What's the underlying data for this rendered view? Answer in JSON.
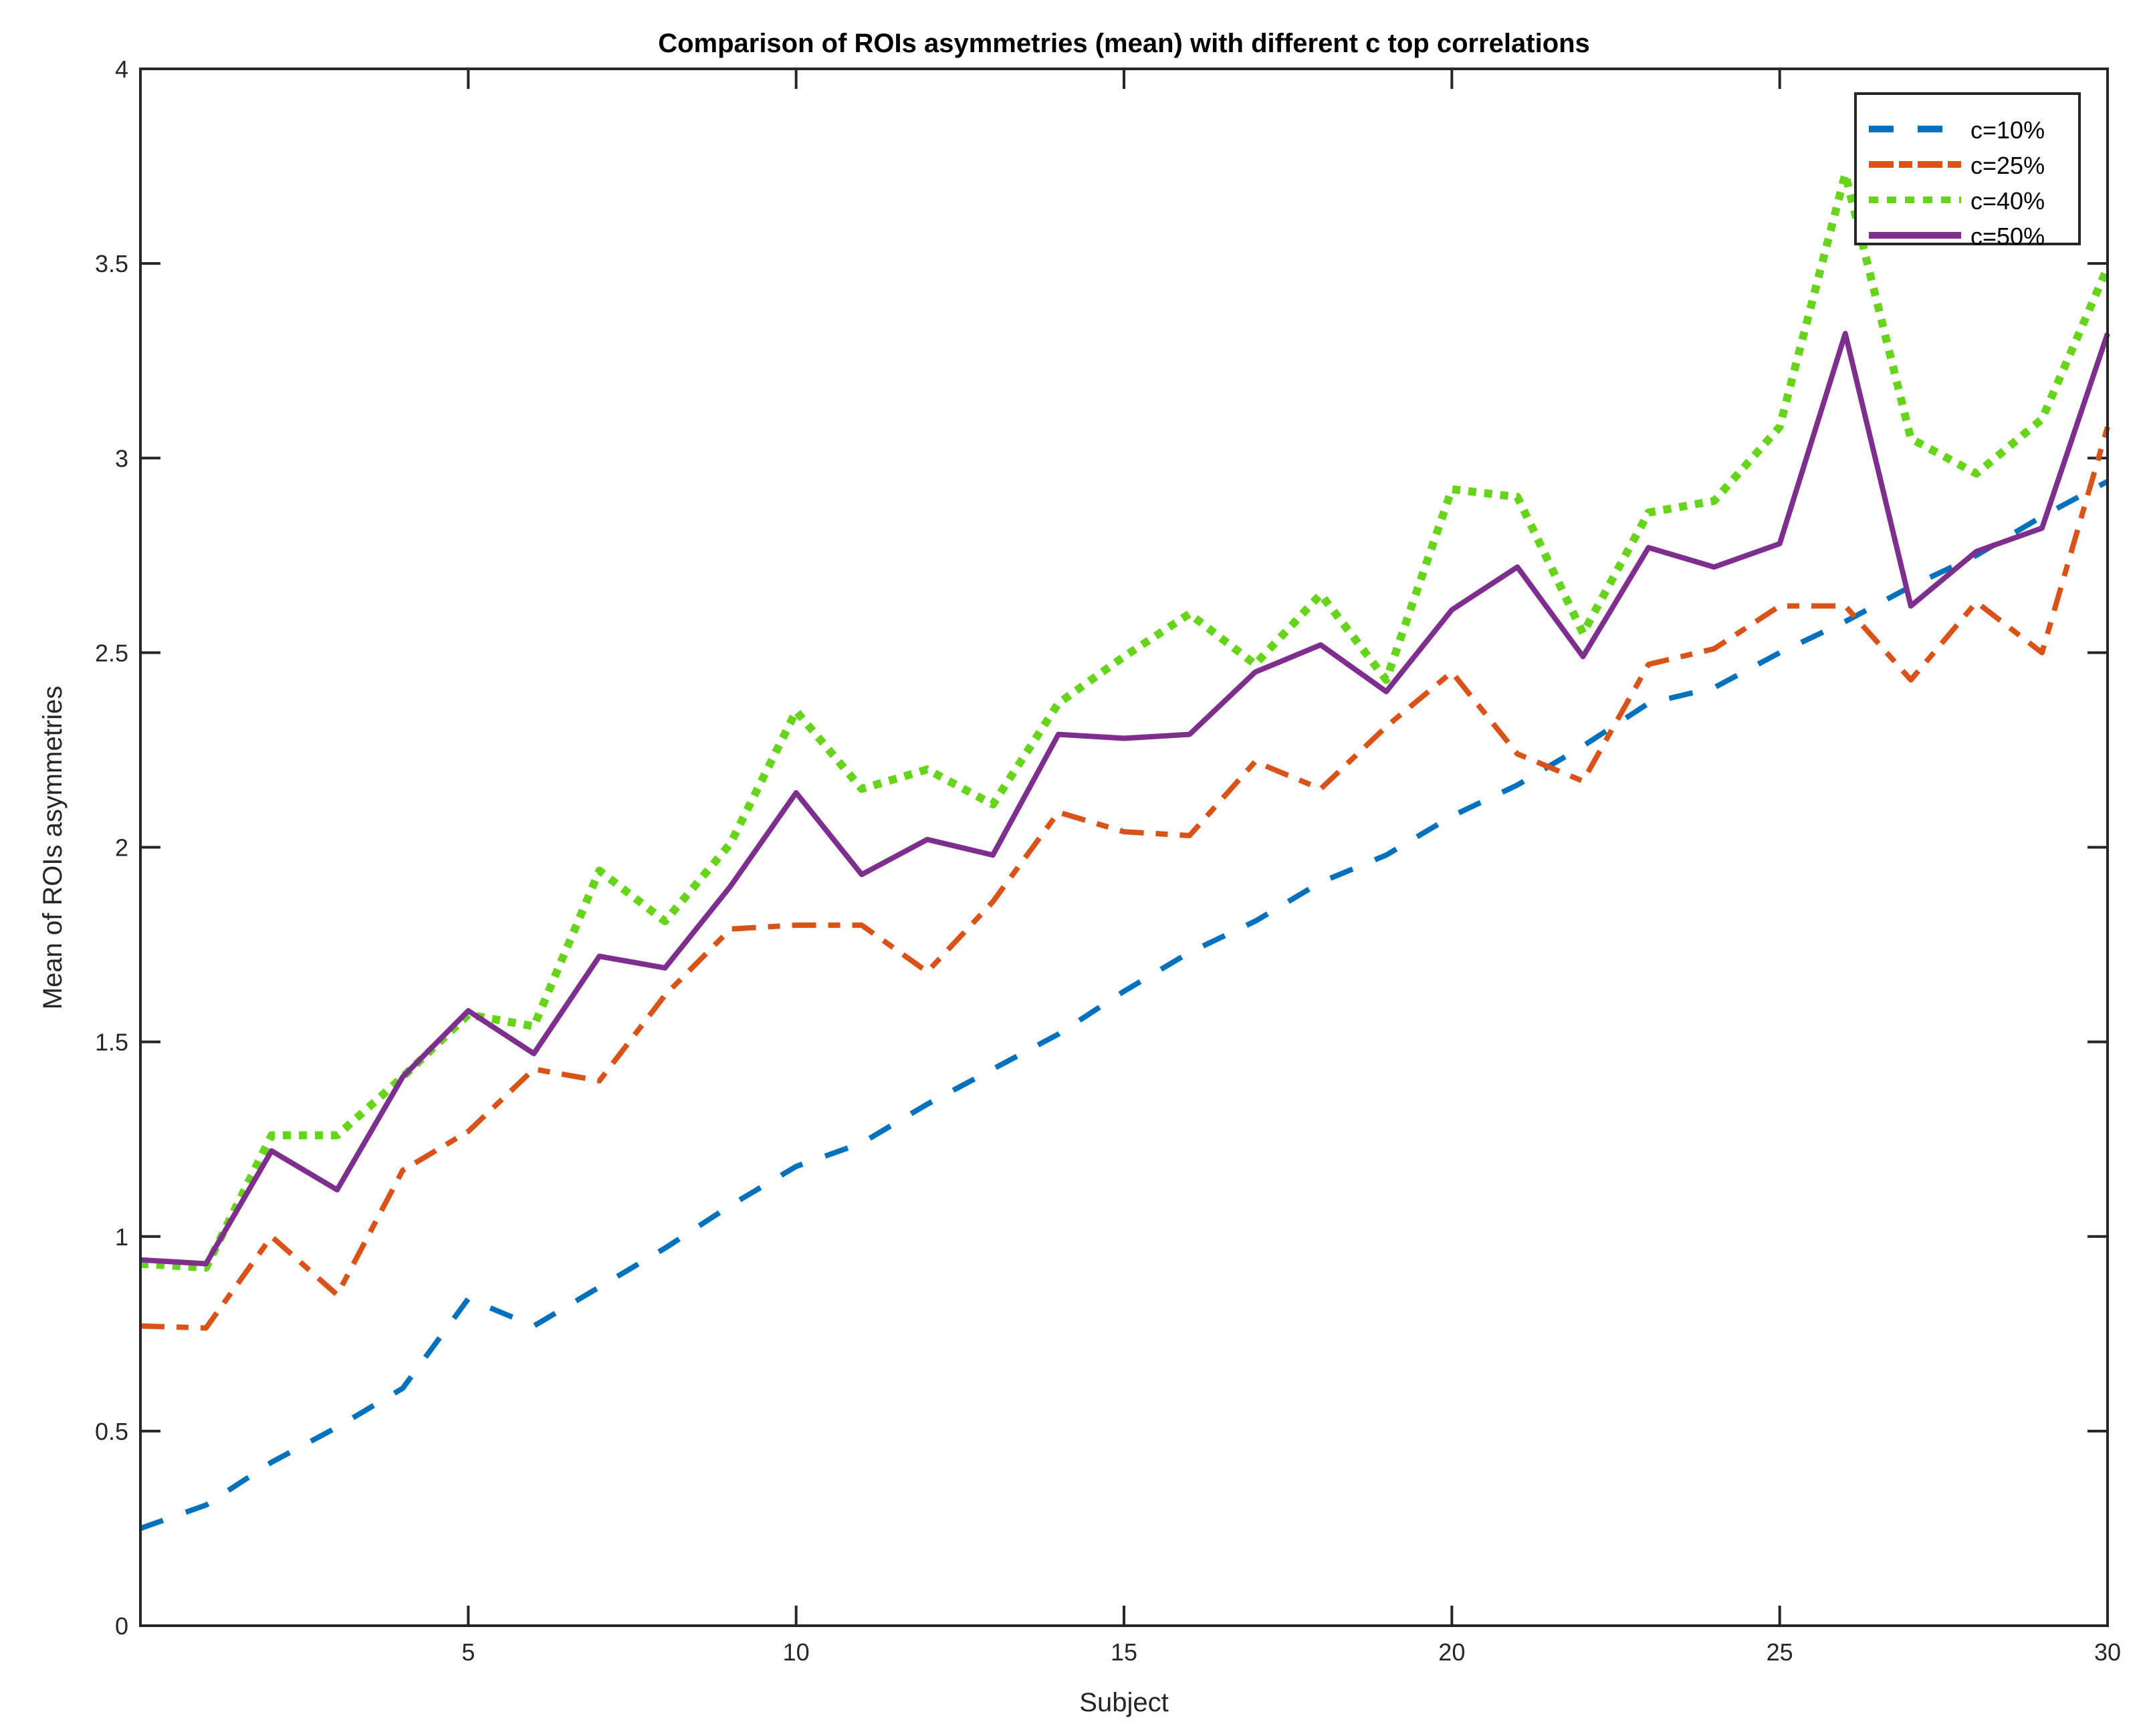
{
  "chart_data": {
    "type": "line",
    "title": "Comparison of ROIs asymmetries (mean) with different c top correlations",
    "xlabel": "Subject",
    "ylabel": "Mean of ROIs asymmetries",
    "xlim": [
      0,
      30
    ],
    "ylim": [
      0,
      4
    ],
    "xticks": [
      5,
      10,
      15,
      20,
      25,
      30
    ],
    "yticks": [
      0,
      0.5,
      1,
      1.5,
      2,
      2.5,
      3,
      3.5,
      4
    ],
    "ytick_labels": [
      "0",
      "0.5",
      "1",
      "1.5",
      "2",
      "2.5",
      "3",
      "3.5",
      "4"
    ],
    "grid": false,
    "legend_placement": "top-right",
    "x": [
      0,
      1,
      2,
      3,
      4,
      5,
      6,
      7,
      8,
      9,
      10,
      11,
      12,
      13,
      14,
      15,
      16,
      17,
      18,
      19,
      20,
      21,
      22,
      23,
      24,
      25,
      26,
      27,
      28,
      29,
      30
    ],
    "series": [
      {
        "name": "c=10%",
        "color": "#0072BD",
        "style": "dashed",
        "values": [
          0.25,
          0.31,
          0.42,
          0.51,
          0.61,
          0.84,
          0.77,
          0.87,
          0.97,
          1.08,
          1.18,
          1.24,
          1.34,
          1.43,
          1.52,
          1.63,
          1.73,
          1.81,
          1.91,
          1.98,
          2.08,
          2.16,
          2.26,
          2.37,
          2.41,
          2.5,
          2.58,
          2.67,
          2.75,
          2.85,
          2.94
        ]
      },
      {
        "name": "c=25%",
        "color": "#D95319",
        "style": "dash-dot",
        "values": [
          0.77,
          0.765,
          1.0,
          0.85,
          1.17,
          1.27,
          1.43,
          1.4,
          1.62,
          1.79,
          1.8,
          1.8,
          1.68,
          1.86,
          2.09,
          2.04,
          2.03,
          2.22,
          2.15,
          2.31,
          2.45,
          2.24,
          2.17,
          2.47,
          2.51,
          2.62,
          2.62,
          2.43,
          2.63,
          2.5,
          3.08
        ]
      },
      {
        "name": "c=40%",
        "color": "#66D41A",
        "style": "dotted",
        "values": [
          0.93,
          0.92,
          1.26,
          1.26,
          1.41,
          1.57,
          1.54,
          1.94,
          1.81,
          2.01,
          2.35,
          2.15,
          2.2,
          2.11,
          2.37,
          2.49,
          2.6,
          2.47,
          2.65,
          2.43,
          2.92,
          2.9,
          2.55,
          2.86,
          2.89,
          3.08,
          3.73,
          3.05,
          2.96,
          3.1,
          3.49
        ]
      },
      {
        "name": "c=50%",
        "color": "#7E2F8E",
        "style": "solid",
        "values": [
          0.94,
          0.93,
          1.22,
          1.12,
          1.41,
          1.58,
          1.47,
          1.72,
          1.69,
          1.9,
          2.14,
          1.93,
          2.02,
          1.98,
          2.29,
          2.28,
          2.29,
          2.45,
          2.52,
          2.4,
          2.61,
          2.72,
          2.49,
          2.77,
          2.72,
          2.78,
          3.32,
          2.62,
          2.76,
          2.82,
          3.32
        ]
      }
    ]
  }
}
